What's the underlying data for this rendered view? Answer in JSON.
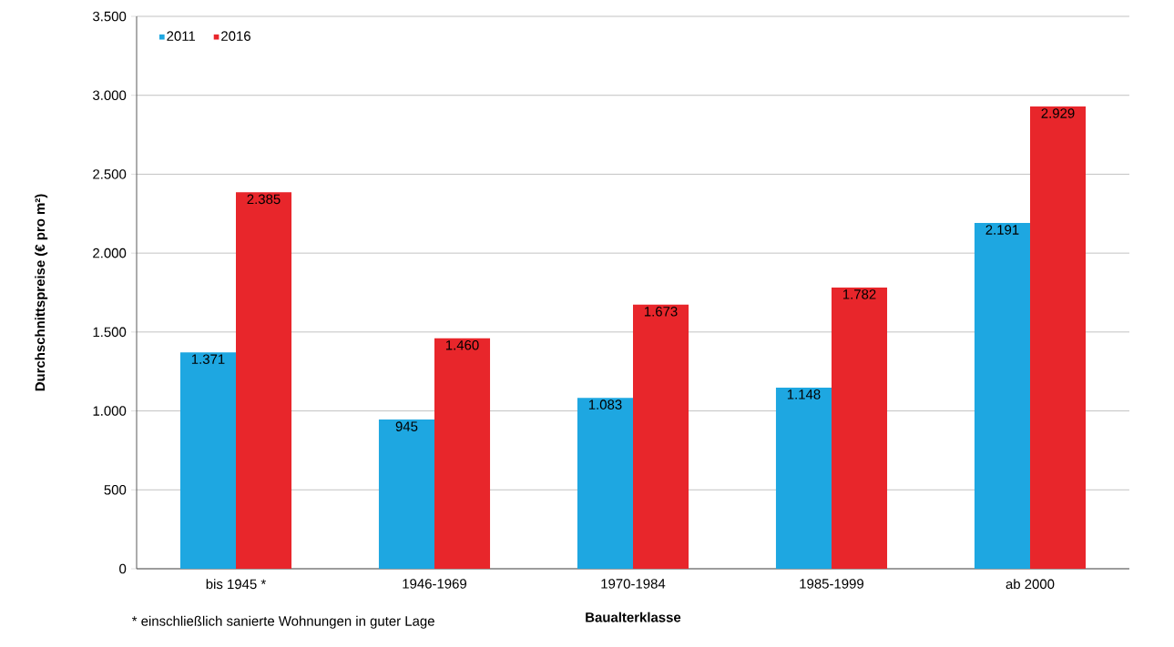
{
  "chart_data": {
    "type": "bar",
    "xlabel": "Baualterklasse",
    "ylabel": "Durchschnittspreise (€ pro m²)",
    "categories": [
      "bis 1945 *",
      "1946-1969",
      "1970-1984",
      "1985-1999",
      "ab 2000"
    ],
    "series": [
      {
        "name": "2011",
        "color": "#1ea7e1",
        "values": [
          1371,
          945,
          1083,
          1148,
          2191
        ],
        "value_labels": [
          "1.371",
          "945",
          "1.083",
          "1.148",
          "2.191"
        ]
      },
      {
        "name": "2016",
        "color": "#e8262b",
        "values": [
          2385,
          1460,
          1673,
          1782,
          2929
        ],
        "value_labels": [
          "2.385",
          "1.460",
          "1.673",
          "1.782",
          "2.929"
        ]
      }
    ],
    "ylim": [
      0,
      3500
    ],
    "yticks": [
      0,
      {
        "value": 500,
        "label": "500"
      },
      {
        "value": 1000,
        "label": "1.000"
      },
      {
        "value": 1500,
        "label": "1.500"
      },
      {
        "value": 2000,
        "label": "2.000"
      },
      {
        "value": 2500,
        "label": "2.500"
      },
      {
        "value": 3000,
        "label": "3.000"
      },
      {
        "value": 3500,
        "label": "3.500"
      }
    ],
    "grid": "y",
    "legend": "top left",
    "annotations": [
      "* einschließlich sanierte Wohnungen in guter Lage"
    ]
  }
}
